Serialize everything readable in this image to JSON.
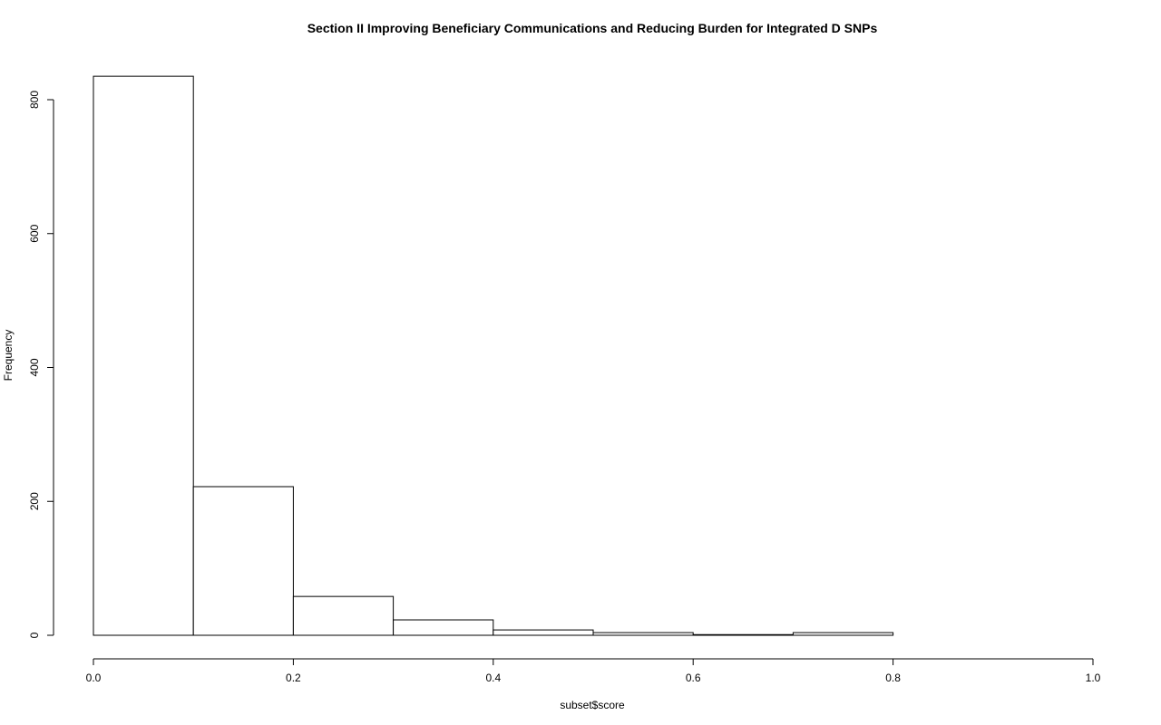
{
  "chart_data": {
    "type": "bar",
    "title": "Section II Improving Beneficiary Communications and Reducing Burden for Integrated D SNPs",
    "xlabel": "subset$score",
    "ylabel": "Frequency",
    "bins": [
      {
        "start": 0.0,
        "end": 0.1,
        "value": 835
      },
      {
        "start": 0.1,
        "end": 0.2,
        "value": 222
      },
      {
        "start": 0.2,
        "end": 0.3,
        "value": 58
      },
      {
        "start": 0.3,
        "end": 0.4,
        "value": 23
      },
      {
        "start": 0.4,
        "end": 0.5,
        "value": 8
      },
      {
        "start": 0.5,
        "end": 0.6,
        "value": 4
      },
      {
        "start": 0.6,
        "end": 0.7,
        "value": 1
      },
      {
        "start": 0.7,
        "end": 0.8,
        "value": 4
      },
      {
        "start": 0.8,
        "end": 0.9,
        "value": 0
      },
      {
        "start": 0.9,
        "end": 1.0,
        "value": 0
      }
    ],
    "xlim": [
      0,
      1
    ],
    "ylim": [
      0,
      835
    ],
    "x_ticks": [
      0.0,
      0.2,
      0.4,
      0.6,
      0.8,
      1.0
    ],
    "x_tick_labels": [
      "0.0",
      "0.2",
      "0.4",
      "0.6",
      "0.8",
      "1.0"
    ],
    "y_ticks": [
      0,
      200,
      400,
      600,
      800
    ],
    "y_tick_labels": [
      "0",
      "200",
      "400",
      "600",
      "800"
    ],
    "grid": false,
    "bar_fill": "#ffffff",
    "bar_stroke": "#000000"
  }
}
